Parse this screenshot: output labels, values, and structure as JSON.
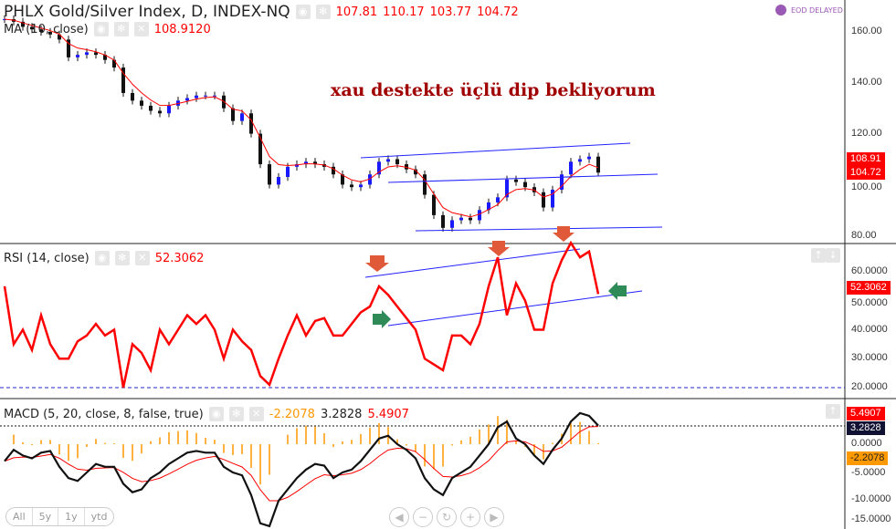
{
  "header": {
    "title": "PHLX Gold/Silver Index, D, INDEX-NQ",
    "open": "107.81",
    "high": "110.17",
    "low": "103.77",
    "close": "104.72",
    "ma_label": "MA (10, close)",
    "ma_value": "108.9120",
    "status": "EOD DELAYED"
  },
  "annotation": "xau destekte üçlü  dip bekliyorum",
  "rsi": {
    "label": "RSI (14, close)",
    "value": "52.3062"
  },
  "macd": {
    "label": "MACD (5, 20, close, 8, false, true)",
    "hist": "-2.2078",
    "macd": "3.2828",
    "signal": "5.4907"
  },
  "price_axis": [
    "160.00",
    "140.00",
    "120.00",
    "100.00",
    "80.00"
  ],
  "rsi_axis": [
    "60.0000",
    "50.0000",
    "40.0000",
    "30.0000",
    "20.0000"
  ],
  "macd_axis": [
    "0.0000",
    "-5.0000",
    "-10.0000",
    "-15.0000"
  ],
  "price_tags": {
    "ma": "108.91",
    "close": "104.72"
  },
  "range_buttons": [
    "All",
    "5y",
    "1y",
    "ytd"
  ],
  "colors": {
    "up": "#1a1aff",
    "down": "#111",
    "ma": "#f00",
    "rsi": "#f00",
    "macd": "#111",
    "signal": "#f00",
    "hist": "#f90",
    "trend": "#1a1aff"
  },
  "chart_data": [
    {
      "type": "candlestick",
      "name": "price",
      "ylim": [
        78,
        168
      ],
      "close": [
        165,
        164,
        162,
        161,
        160,
        159,
        157,
        150,
        151,
        152,
        151,
        149,
        146,
        136,
        133,
        131,
        129,
        128,
        131,
        133,
        134,
        135,
        135,
        135,
        130,
        125,
        128,
        120,
        108,
        100,
        103,
        107,
        108,
        109,
        108,
        107,
        104,
        100,
        99,
        100,
        104,
        109,
        110,
        108,
        106,
        104,
        96,
        88,
        83,
        86,
        87,
        86,
        90,
        93,
        95,
        102,
        101,
        99,
        97,
        91,
        98,
        104,
        109,
        110,
        111,
        104.72
      ]
    },
    {
      "type": "line",
      "name": "rsi",
      "ylim": [
        15,
        70
      ],
      "values": [
        55,
        35,
        40,
        33,
        45,
        35,
        30,
        30,
        36,
        38,
        42,
        38,
        40,
        20,
        35,
        32,
        26,
        40,
        35,
        40,
        45,
        42,
        45,
        40,
        30,
        40,
        36,
        33,
        24,
        21,
        30,
        38,
        45,
        38,
        43,
        44,
        38,
        38,
        42,
        46,
        48,
        55,
        52,
        48,
        44,
        40,
        30,
        28,
        26,
        38,
        38,
        35,
        42,
        55,
        65,
        45,
        56,
        50,
        40,
        40,
        56,
        64,
        70,
        65,
        67,
        52.31
      ]
    },
    {
      "type": "line",
      "name": "macd",
      "ylim": [
        -15,
        8
      ],
      "values": [
        -3,
        -1,
        -2,
        -2.5,
        -1.5,
        -1.2,
        -4,
        -6,
        -6.5,
        -5,
        -3.5,
        -4,
        -4,
        -7,
        -8.5,
        -8,
        -6,
        -5,
        -3.5,
        -2.5,
        -1.5,
        -1.2,
        -1.5,
        -1.5,
        -4,
        -5,
        -5.5,
        -9,
        -14,
        -14.5,
        -10,
        -8,
        -6,
        -4.5,
        -3.5,
        -3.8,
        -6,
        -5,
        -4.5,
        -3,
        -1,
        1,
        1.5,
        0,
        -1,
        -2.5,
        -6,
        -8,
        -9,
        -6,
        -5,
        -4,
        -2,
        0,
        3,
        4,
        1,
        0,
        -2,
        -3.5,
        -1,
        1,
        4,
        5.5,
        5,
        3.28
      ]
    }
  ]
}
